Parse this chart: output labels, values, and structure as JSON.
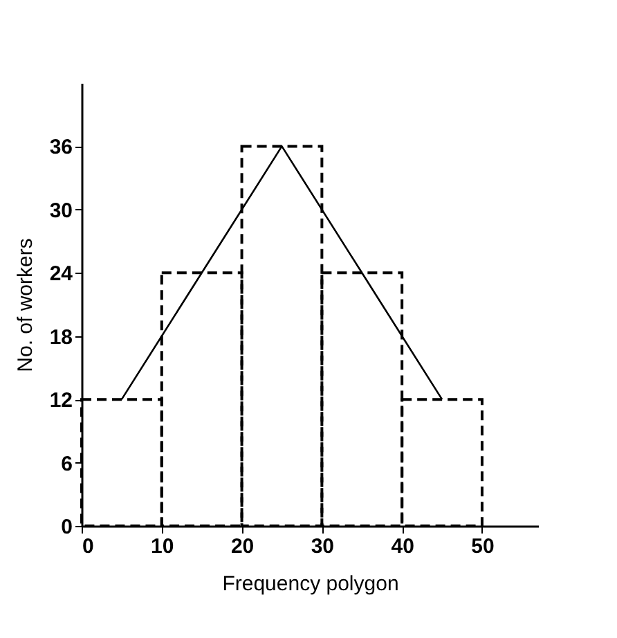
{
  "chart_data": {
    "type": "histogram",
    "xlabel": "Frequency polygon",
    "ylabel": "No. of workers",
    "xlim": [
      0,
      57
    ],
    "xticks": [
      0,
      10,
      20,
      30,
      40,
      50
    ],
    "ylim": [
      0,
      42
    ],
    "yticks": [
      0,
      6,
      12,
      18,
      24,
      30,
      36
    ],
    "grid": false,
    "marker": "none",
    "series": [
      {
        "bins": [
          0,
          10,
          20,
          30,
          40,
          50
        ],
        "values": [
          12,
          24,
          36,
          24,
          12
        ],
        "color": "#000000",
        "line_style": "dashed"
      },
      {
        "type": "line",
        "x": [
          5,
          15,
          25,
          35,
          45
        ],
        "values": [
          12,
          24,
          36,
          24,
          12
        ],
        "color": "#000000",
        "line_style": "solid"
      }
    ]
  }
}
